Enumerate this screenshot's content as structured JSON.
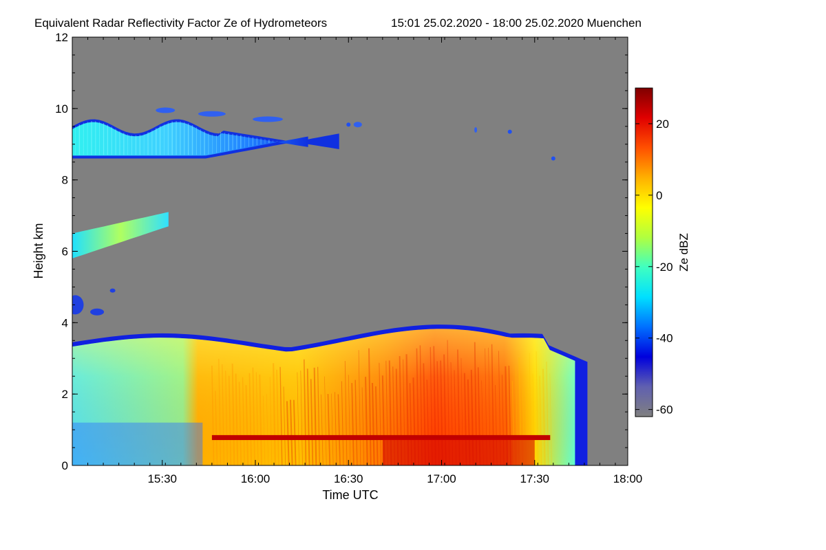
{
  "chart_data": {
    "type": "heatmap",
    "title": "Equivalent Radar Reflectivity Factor Ze of Hydrometeors",
    "subtitle": "15:01 25.02.2020 - 18:00 25.02.2020 Muenchen",
    "xlabel": "Time UTC",
    "ylabel": "Height km",
    "xlim": [
      "15:01",
      "18:00"
    ],
    "ylim": [
      0,
      12
    ],
    "x_ticks": [
      "15:30",
      "16:00",
      "16:30",
      "17:00",
      "17:30",
      "18:00"
    ],
    "y_ticks": [
      0,
      2,
      4,
      6,
      8,
      10,
      12
    ],
    "background_color": "#808080",
    "colorbar": {
      "label": "Ze dBZ",
      "range": [
        -62,
        30
      ],
      "ticks": [
        20,
        0,
        -20,
        -40,
        -60
      ],
      "colormap": [
        "#808080",
        "#6060b0",
        "#0000dd",
        "#0070ff",
        "#00e0ff",
        "#40ffc0",
        "#b0ff40",
        "#ffff00",
        "#ffb000",
        "#ff5000",
        "#e00000",
        "#800000"
      ]
    },
    "features": [
      {
        "label": "cirrus-layer",
        "time_range": [
          "15:01",
          "16:27"
        ],
        "height_range_km": [
          8.6,
          10.1
        ],
        "ze_range_dbz": [
          -45,
          -25
        ]
      },
      {
        "label": "mid-level-layer",
        "time_range": [
          "15:01",
          "15:32"
        ],
        "height_range_km": [
          5.8,
          7.1
        ],
        "ze_range_dbz": [
          -30,
          -5
        ]
      },
      {
        "label": "precipitation",
        "time_range": [
          "15:01",
          "17:47"
        ],
        "height_range_km": [
          0,
          4.4
        ],
        "ze_range_dbz": [
          -40,
          28
        ]
      },
      {
        "label": "bright-band",
        "time_range": [
          "15:46",
          "17:35"
        ],
        "height_range_km": [
          0.75,
          0.85
        ],
        "ze_range_dbz": [
          20,
          30
        ]
      }
    ]
  }
}
